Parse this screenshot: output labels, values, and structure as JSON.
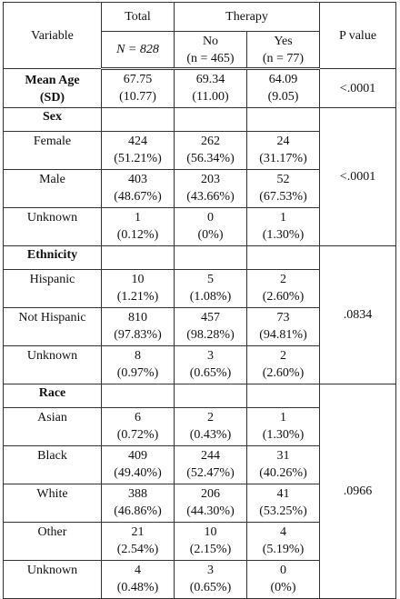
{
  "header": {
    "variable": "Variable",
    "total": "Total",
    "total_n": "N = 828",
    "therapy": "Therapy",
    "no": "No",
    "no_n": "(n = 465)",
    "yes": "Yes",
    "yes_n": "(n = 77)",
    "p": "P value"
  },
  "mean_age": {
    "label": [
      "Mean Age",
      "(SD)"
    ],
    "total": [
      "67.75",
      "(10.77)"
    ],
    "no": [
      "69.34",
      "(11.00)"
    ],
    "yes": [
      "64.09",
      "(9.05)"
    ],
    "p": "<.0001"
  },
  "sections": [
    {
      "title": "Sex",
      "p": "<.0001",
      "rows": [
        {
          "label": "Female",
          "total": [
            "424",
            "(51.21%)"
          ],
          "no": [
            "262",
            "(56.34%)"
          ],
          "yes": [
            "24",
            "(31.17%)"
          ]
        },
        {
          "label": "Male",
          "total": [
            "403",
            "(48.67%)"
          ],
          "no": [
            "203",
            "(43.66%)"
          ],
          "yes": [
            "52",
            "(67.53%)"
          ]
        },
        {
          "label": "Unknown",
          "total": [
            "1",
            "(0.12%)"
          ],
          "no": [
            "0",
            "(0%)"
          ],
          "yes": [
            "1",
            "(1.30%)"
          ]
        }
      ]
    },
    {
      "title": "Ethnicity",
      "p": ".0834",
      "rows": [
        {
          "label": "Hispanic",
          "total": [
            "10",
            "(1.21%)"
          ],
          "no": [
            "5",
            "(1.08%)"
          ],
          "yes": [
            "2",
            "(2.60%)"
          ]
        },
        {
          "label": "Not Hispanic",
          "total": [
            "810",
            "(97.83%)"
          ],
          "no": [
            "457",
            "(98.28%)"
          ],
          "yes": [
            "73",
            "(94.81%)"
          ]
        },
        {
          "label": "Unknown",
          "total": [
            "8",
            "(0.97%)"
          ],
          "no": [
            "3",
            "(0.65%)"
          ],
          "yes": [
            "2",
            "(2.60%)"
          ]
        }
      ]
    },
    {
      "title": "Race",
      "p": ".0966",
      "rows": [
        {
          "label": "Asian",
          "total": [
            "6",
            "(0.72%)"
          ],
          "no": [
            "2",
            "(0.43%)"
          ],
          "yes": [
            "1",
            "(1.30%)"
          ]
        },
        {
          "label": "Black",
          "total": [
            "409",
            "(49.40%)"
          ],
          "no": [
            "244",
            "(52.47%)"
          ],
          "yes": [
            "31",
            "(40.26%)"
          ]
        },
        {
          "label": "White",
          "total": [
            "388",
            "(46.86%)"
          ],
          "no": [
            "206",
            "(44.30%)"
          ],
          "yes": [
            "41",
            "(53.25%)"
          ]
        },
        {
          "label": "Other",
          "total": [
            "21",
            "(2.54%)"
          ],
          "no": [
            "10",
            "(2.15%)"
          ],
          "yes": [
            "4",
            "(5.19%)"
          ]
        },
        {
          "label": "Unknown",
          "total": [
            "4",
            "(0.48%)"
          ],
          "no": [
            "3",
            "(0.65%)"
          ],
          "yes": [
            "0",
            "(0%)"
          ]
        }
      ]
    }
  ]
}
